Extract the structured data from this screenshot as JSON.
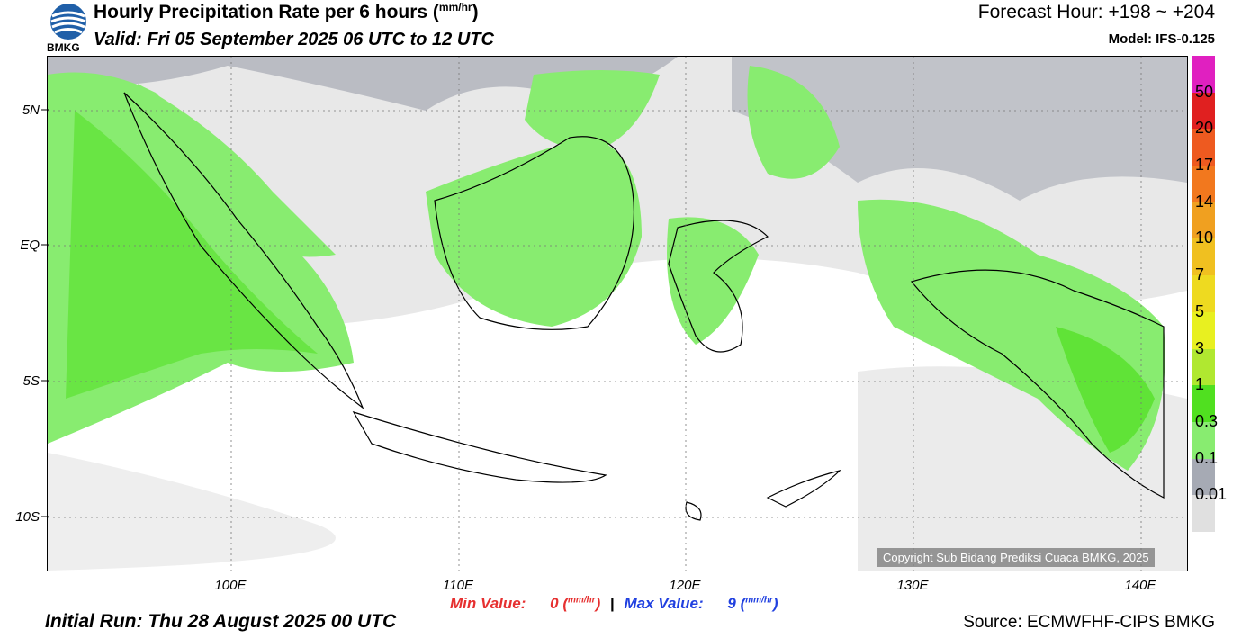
{
  "header": {
    "logo_text": "BMKG",
    "title": "Hourly Precipitation Rate per 6 hours (",
    "title_unit": "mm/hr",
    "title_close": ")",
    "valid": "Valid: Fri 05 September 2025 06 UTC to 12 UTC",
    "forecast_hour": "Forecast Hour: +198 ~ +204",
    "model": "Model: IFS-0.125"
  },
  "map": {
    "lat_labels": [
      "5N",
      "EQ",
      "5S",
      "10S"
    ],
    "lon_labels": [
      "100E",
      "110E",
      "120E",
      "130E",
      "140E"
    ],
    "copyright": "Copyright Sub Bidang Prediksi Cuaca BMKG, 2025"
  },
  "colorbar": {
    "labels": [
      "50",
      "20",
      "17",
      "14",
      "10",
      "7",
      "5",
      "3",
      "1",
      "0.3",
      "0.1",
      "0.01"
    ],
    "colors": [
      "#e020c0",
      "#e02020",
      "#ee5a20",
      "#f2781e",
      "#f0a020",
      "#f0c020",
      "#eeda20",
      "#e8f020",
      "#b0e830",
      "#50e020",
      "#88ec70",
      "#a6aab4",
      "#e0e0e0"
    ]
  },
  "stats": {
    "min_label": "Min Value:",
    "min_value": "0",
    "max_label": "Max Value:",
    "max_value": "9",
    "unit": "mm/hr"
  },
  "footer": {
    "initial_run": "Initial Run: Thu 28 August 2025 00 UTC",
    "source": "Source: ECMWFHF-CIPS BMKG"
  }
}
